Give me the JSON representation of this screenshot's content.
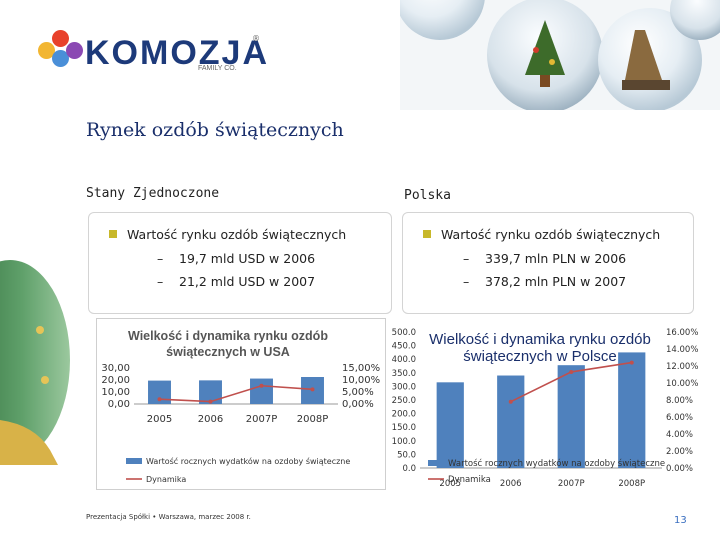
{
  "logo": {
    "name": "KOMOZJA",
    "sub": "FAMILY CO.",
    "reg": "®",
    "dot_colors": [
      "#f2b632",
      "#e8412b",
      "#4a8fd8",
      "#8b49b3"
    ]
  },
  "title": "Rynek ozdób świątecznych",
  "us": {
    "heading": "Stany Zjednoczone",
    "bullet": "Wartość rynku ozdób świątecznych",
    "items": [
      {
        "dash": "–",
        "text": "19,7 mld USD w 2006"
      },
      {
        "dash": "–",
        "text": "21,2 mld USD w 2007"
      }
    ]
  },
  "pl": {
    "heading": "Polska",
    "bullet": "Wartość rynku ozdób świątecznych",
    "items": [
      {
        "dash": "–",
        "text": "339,7 mln PLN w 2006"
      },
      {
        "dash": "–",
        "text": "378,2 mln PLN w 2007"
      }
    ]
  },
  "chart_data": [
    {
      "type": "bar",
      "title": "Wielkość i dynamika rynku ozdób świątecznych w USA",
      "categories": [
        "2005",
        "2006",
        "2007P",
        "2008P"
      ],
      "y_left_ticks": [
        "30,00",
        "20,00",
        "10,00",
        "0,00"
      ],
      "y_right_ticks": [
        "15,00%",
        "10,00%",
        "5,00%",
        "0,00%"
      ],
      "ylim_left": [
        0,
        30
      ],
      "ylim_right": [
        0,
        15
      ],
      "series": [
        {
          "name": "Wartość rocznych wydatków na ozdoby świąteczne",
          "kind": "bar",
          "values": [
            19.5,
            19.7,
            21.2,
            22.5
          ],
          "color": "#4f81bd"
        },
        {
          "name": "Dynamika",
          "kind": "line",
          "values": [
            2.0,
            1.0,
            7.6,
            6.1
          ],
          "color": "#c0504d"
        }
      ],
      "legend": "bottom"
    },
    {
      "type": "bar",
      "title": "Wielkość i dynamika rynku ozdób świątecznych w Polsce",
      "categories": [
        "2005",
        "2006",
        "2007P",
        "2008P"
      ],
      "y_left_ticks": [
        "500.0",
        "450.0",
        "400.0",
        "350.0",
        "300.0",
        "250.0",
        "200.0",
        "150.0",
        "100.0",
        "50.0",
        "0.0"
      ],
      "y_right_ticks": [
        "16.00%",
        "14.00%",
        "12.00%",
        "10.00%",
        "8.00%",
        "6.00%",
        "4.00%",
        "2.00%",
        "0.00%"
      ],
      "ylim_left": [
        0,
        500
      ],
      "ylim_right": [
        0,
        16
      ],
      "series": [
        {
          "name": "Wartość rocznych wydatków na ozdoby świąteczne",
          "kind": "bar",
          "values": [
            315,
            340,
            378,
            425
          ],
          "color": "#4f81bd"
        },
        {
          "name": "Dynamika",
          "kind": "line",
          "values": [
            null,
            7.8,
            11.3,
            12.4
          ],
          "color": "#c0504d"
        }
      ],
      "legend": "bottom"
    }
  ],
  "footer": "Prezentacja Spółki  •  Warszawa, marzec 2008 r.",
  "page_number": "13"
}
